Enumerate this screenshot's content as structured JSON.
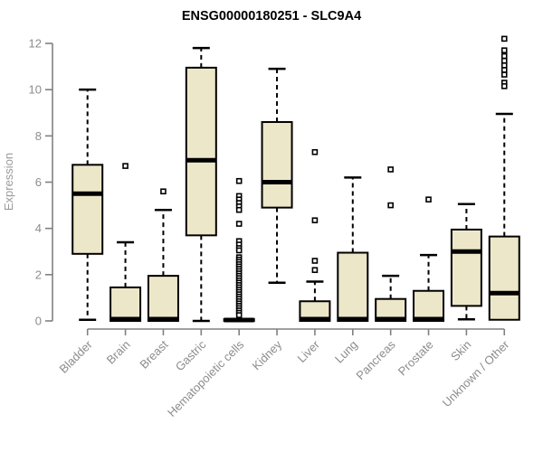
{
  "chart_data": {
    "type": "box",
    "title": "ENSG00000180251 - SLC9A4",
    "ylabel": "Expression",
    "xlabel": "",
    "ylim": [
      0,
      12
    ],
    "yticks": [
      0,
      2,
      4,
      6,
      8,
      10,
      12
    ],
    "grid": false,
    "legend": "none",
    "categories": [
      "Bladder",
      "Brain",
      "Breast",
      "Gastric",
      "Hematopoietic cells",
      "Kidney",
      "Liver",
      "Lung",
      "Pancreas",
      "Prostate",
      "Skin",
      "Unknown / Other"
    ],
    "series": [
      {
        "name": "Bladder",
        "whisker_low": 0.05,
        "q1": 2.9,
        "median": 5.5,
        "q3": 6.75,
        "whisker_high": 10.0,
        "outliers": []
      },
      {
        "name": "Brain",
        "whisker_low": 0.0,
        "q1": 0.0,
        "median": 0.08,
        "q3": 1.45,
        "whisker_high": 3.4,
        "outliers": [
          6.7
        ]
      },
      {
        "name": "Breast",
        "whisker_low": 0.0,
        "q1": 0.0,
        "median": 0.08,
        "q3": 1.95,
        "whisker_high": 4.8,
        "outliers": [
          5.6
        ]
      },
      {
        "name": "Gastric",
        "whisker_low": 0.0,
        "q1": 3.7,
        "median": 6.95,
        "q3": 10.95,
        "whisker_high": 11.8,
        "outliers": []
      },
      {
        "name": "Hematopoietic cells",
        "whisker_low": 0.0,
        "q1": 0.0,
        "median": 0.04,
        "q3": 0.08,
        "whisker_high": 0.08,
        "outliers": [
          6.05,
          5.4,
          5.25,
          5.1,
          4.95,
          4.8,
          4.2,
          3.45,
          3.3,
          3.15,
          3.05,
          2.75,
          2.65,
          2.55,
          2.45,
          2.35,
          2.25,
          2.15,
          2.05,
          1.95,
          1.85,
          1.75,
          1.65,
          1.55,
          1.45,
          1.35,
          1.25,
          1.15,
          1.05,
          0.95,
          0.85,
          0.75,
          0.65,
          0.55,
          0.45,
          0.35,
          0.25
        ]
      },
      {
        "name": "Kidney",
        "whisker_low": 1.65,
        "q1": 4.9,
        "median": 6.0,
        "q3": 8.6,
        "whisker_high": 10.9,
        "outliers": []
      },
      {
        "name": "Liver",
        "whisker_low": 0.0,
        "q1": 0.0,
        "median": 0.08,
        "q3": 0.85,
        "whisker_high": 1.7,
        "outliers": [
          7.3,
          4.35,
          2.6,
          2.2
        ]
      },
      {
        "name": "Lung",
        "whisker_low": 0.0,
        "q1": 0.0,
        "median": 0.08,
        "q3": 2.95,
        "whisker_high": 6.2,
        "outliers": []
      },
      {
        "name": "Pancreas",
        "whisker_low": 0.0,
        "q1": 0.0,
        "median": 0.08,
        "q3": 0.95,
        "whisker_high": 1.95,
        "outliers": [
          6.55,
          5.0
        ]
      },
      {
        "name": "Prostate",
        "whisker_low": 0.0,
        "q1": 0.0,
        "median": 0.08,
        "q3": 1.3,
        "whisker_high": 2.85,
        "outliers": [
          5.25
        ]
      },
      {
        "name": "Skin",
        "whisker_low": 0.07,
        "q1": 0.65,
        "median": 3.0,
        "q3": 3.95,
        "whisker_high": 5.05,
        "outliers": []
      },
      {
        "name": "Unknown / Other",
        "whisker_low": 0.05,
        "q1": 0.05,
        "median": 1.2,
        "q3": 3.65,
        "whisker_high": 8.95,
        "outliers": [
          12.2,
          11.7,
          11.45,
          11.25,
          11.05,
          10.85,
          10.65,
          10.3,
          10.15
        ]
      }
    ],
    "colors": {
      "box_fill": "#ede7c9",
      "box_stroke": "#000000",
      "median": "#000000",
      "whisker": "#000000",
      "outlier_stroke": "#000000",
      "outlier_fill": "#ffffff",
      "axis": "#808080",
      "tick_text": "#8c8c8c",
      "title_text": "#000000"
    }
  }
}
